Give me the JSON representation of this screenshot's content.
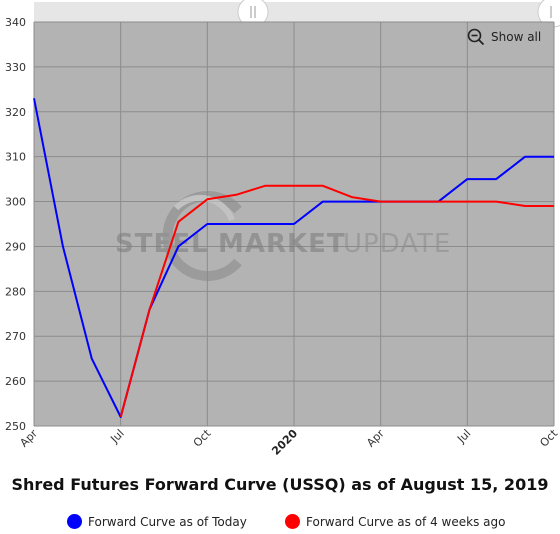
{
  "chart_data": {
    "type": "line",
    "title": "Shred Futures Forward Curve (USSQ) as of August 15, 2019",
    "x": [
      "Apr 2019",
      "May 2019",
      "Jun 2019",
      "Jul 2019",
      "Aug 2019",
      "Sep 2019",
      "Oct 2019",
      "Nov 2019",
      "Dec 2019",
      "Jan 2020",
      "Feb 2020",
      "Mar 2020",
      "Apr 2020",
      "May 2020",
      "Jun 2020",
      "Jul 2020",
      "Aug 2020",
      "Sep 2020",
      "Oct 2020"
    ],
    "x_tick_labels": [
      "Apr",
      "Jul",
      "Oct",
      "2020",
      "Apr",
      "Jul",
      "Oct"
    ],
    "y_ticks": [
      250,
      260,
      270,
      280,
      290,
      300,
      310,
      320,
      330,
      340
    ],
    "ylim": [
      250,
      340
    ],
    "grid": true,
    "series": [
      {
        "name": "Forward Curve as of Today",
        "color": "#0000ff",
        "values": [
          323,
          290,
          265,
          252,
          276,
          290,
          295,
          295,
          295,
          295,
          300,
          300,
          300,
          300,
          300,
          305,
          305,
          310,
          310
        ]
      },
      {
        "name": "Forward Curve as of 4 weeks ago",
        "color": "#ff0000",
        "values": [
          null,
          null,
          null,
          252,
          276,
          295.5,
          300.5,
          301.5,
          303.5,
          303.5,
          303.5,
          301,
          300,
          300,
          300,
          300,
          300,
          299,
          299
        ]
      }
    ],
    "legend_position": "bottom"
  },
  "watermark": {
    "text": "STEELMARKET UPDATE"
  },
  "controls": {
    "show_all_label": "Show all",
    "zoom_icon": "zoom-out-icon"
  },
  "colors": {
    "plot_bg": "#b3b3b3",
    "grid": "#8c8c8c",
    "navigator_bg": "#e6e6e6"
  }
}
